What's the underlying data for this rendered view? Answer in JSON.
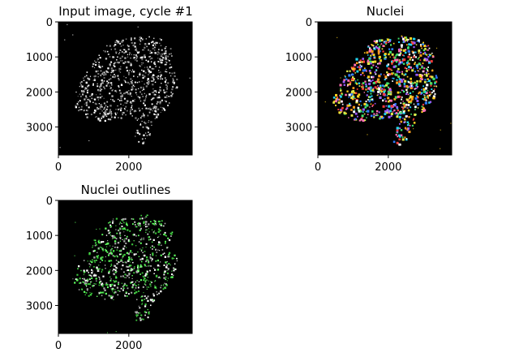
{
  "chart_data": [
    {
      "type": "heatmap",
      "title": "Input image, cycle #1",
      "xlabel": "",
      "ylabel": "",
      "x_ticks": [
        0,
        2000
      ],
      "y_ticks": [
        0,
        1000,
        2000,
        3000
      ],
      "xlim": [
        0,
        3800
      ],
      "ylim": [
        3800,
        0
      ],
      "colormap": "gray",
      "colors": [
        "#ffffff",
        "#bdbdbd",
        "#7a7a7a"
      ],
      "background": "#000000"
    },
    {
      "type": "heatmap",
      "title": "Nuclei",
      "xlabel": "",
      "ylabel": "",
      "x_ticks": [
        0,
        2000
      ],
      "y_ticks": [
        0,
        1000,
        2000,
        3000
      ],
      "xlim": [
        0,
        3800
      ],
      "ylim": [
        3800,
        0
      ],
      "colormap": "random-label",
      "colors": [
        "#ffd21f",
        "#ff3b3b",
        "#2e7bff",
        "#22d3ee",
        "#ff9f1c",
        "#3fe36b",
        "#e0e84a",
        "#ff6fb5",
        "#9b5cff",
        "#ffffff"
      ],
      "background": "#000000"
    },
    {
      "type": "heatmap",
      "title": "Nuclei outlines",
      "xlabel": "",
      "ylabel": "",
      "x_ticks": [
        0,
        2000
      ],
      "y_ticks": [
        0,
        1000,
        2000,
        3000
      ],
      "xlim": [
        0,
        3800
      ],
      "ylim": [
        3800,
        0
      ],
      "colormap": "outline-overlay",
      "colors": [
        "#5fff5f",
        "#3cc83c",
        "#ffffff",
        "#a8a8a8"
      ],
      "background": "#000000"
    }
  ]
}
